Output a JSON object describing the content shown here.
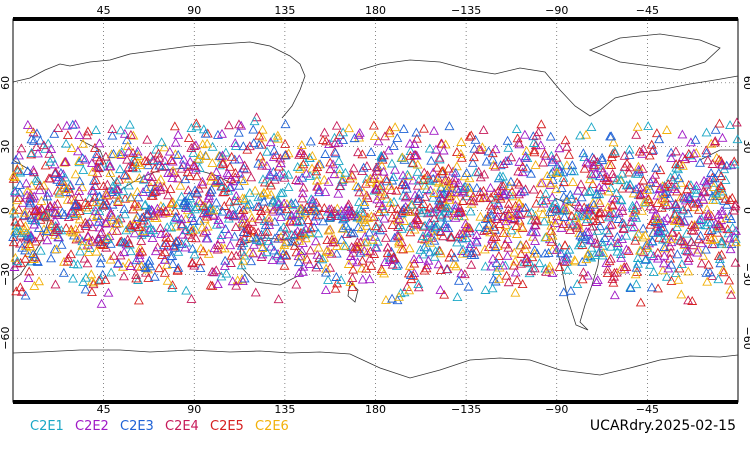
{
  "map": {
    "projection": "cylindrical-equidistant",
    "central_longitude": 180,
    "lon_range": [
      0,
      360
    ],
    "lat_range": [
      -90,
      90
    ],
    "top_lon_ticks": [
      "45",
      "90",
      "135",
      "180",
      "−135",
      "−90",
      "−45"
    ],
    "bottom_lon_ticks": [
      "45",
      "90",
      "135",
      "180",
      "−135",
      "−90",
      "−45"
    ],
    "lat_ticks": [
      "60",
      "30",
      "0",
      "−30",
      "−60"
    ],
    "gridlines": "dotted",
    "frame_color": "#000000"
  },
  "legend": {
    "items": [
      {
        "label": "C2E1",
        "color": "#1aa7c6"
      },
      {
        "label": "C2E2",
        "color": "#a01ac6"
      },
      {
        "label": "C2E3",
        "color": "#1f62d6"
      },
      {
        "label": "C2E4",
        "color": "#c61a5a"
      },
      {
        "label": "C2E5",
        "color": "#d62020"
      },
      {
        "label": "C2E6",
        "color": "#f2b10a"
      }
    ]
  },
  "product_label": "UCARdry.2025-02-15",
  "observations": {
    "marker": "open-triangle",
    "lat_band": [
      -45,
      45
    ],
    "note_visible": ""
  }
}
